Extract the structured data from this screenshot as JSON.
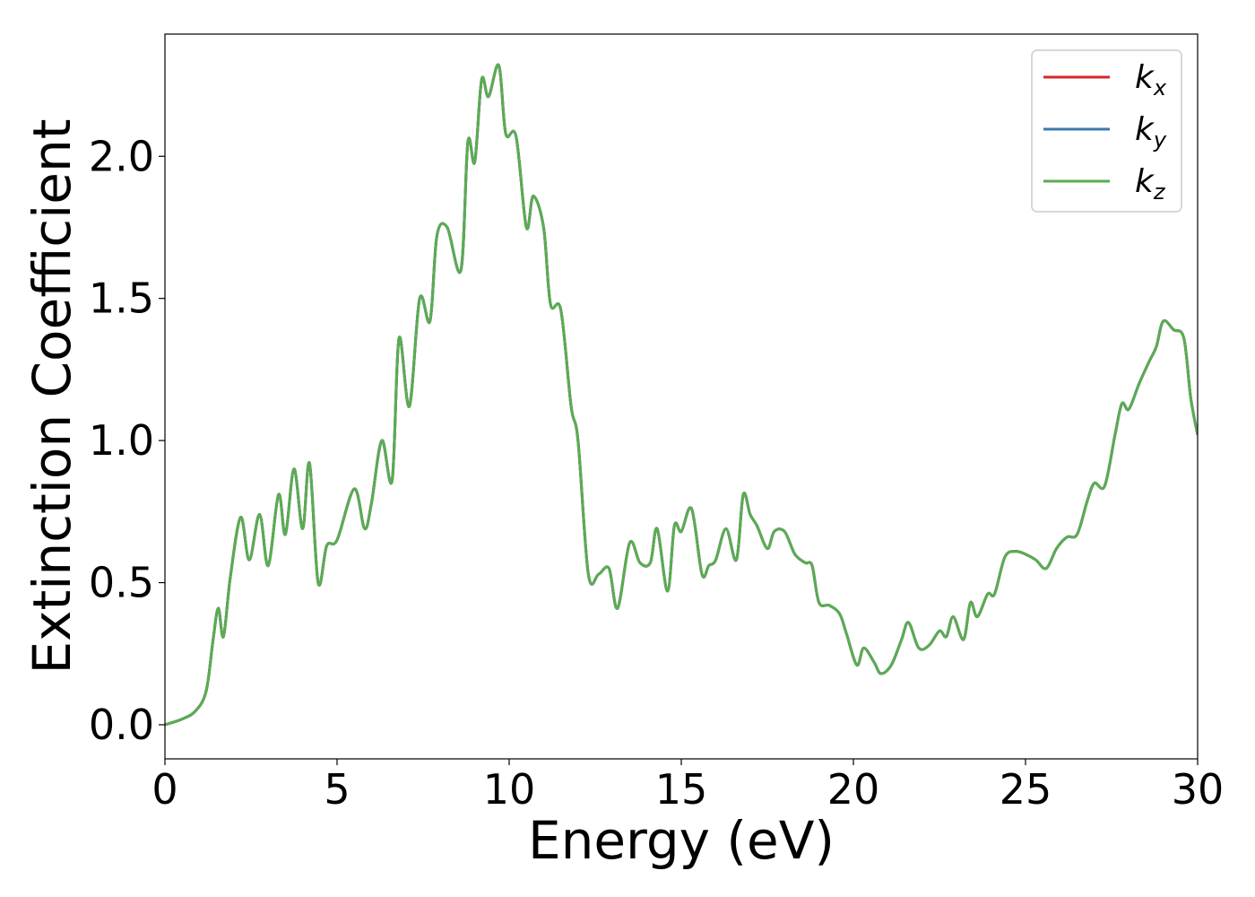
{
  "chart_data": {
    "type": "line",
    "title": "",
    "xlabel": "Energy (eV)",
    "ylabel": "Extinction Coefficient",
    "xlim": [
      0,
      30
    ],
    "ylim": [
      -0.12,
      2.43
    ],
    "xticks": [
      0,
      5,
      10,
      15,
      20,
      25,
      30
    ],
    "xtick_labels": [
      "0",
      "5",
      "10",
      "15",
      "20",
      "25",
      "30"
    ],
    "yticks": [
      0.0,
      0.5,
      1.0,
      1.5,
      2.0
    ],
    "ytick_labels": [
      "0.0",
      "0.5",
      "1.0",
      "1.5",
      "2.0"
    ],
    "grid": false,
    "legend_position": "top-right",
    "x": [
      0,
      0.5,
      0.9,
      1.2,
      1.4,
      1.55,
      1.7,
      1.9,
      2.2,
      2.45,
      2.75,
      3.0,
      3.3,
      3.5,
      3.75,
      4.0,
      4.2,
      4.45,
      4.7,
      5.0,
      5.5,
      5.8,
      6.0,
      6.3,
      6.6,
      6.8,
      7.1,
      7.4,
      7.7,
      7.9,
      8.2,
      8.6,
      8.8,
      9.0,
      9.2,
      9.4,
      9.7,
      9.9,
      10.2,
      10.5,
      10.7,
      11.0,
      11.2,
      11.5,
      11.8,
      12.0,
      12.3,
      12.6,
      12.9,
      13.15,
      13.5,
      13.8,
      14.1,
      14.3,
      14.6,
      14.8,
      15.0,
      15.3,
      15.6,
      15.8,
      16.0,
      16.3,
      16.6,
      16.8,
      17.0,
      17.2,
      17.5,
      17.7,
      18.0,
      18.3,
      18.6,
      18.8,
      19.0,
      19.3,
      19.6,
      19.8,
      20.1,
      20.3,
      20.6,
      20.8,
      21.1,
      21.4,
      21.6,
      21.9,
      22.2,
      22.5,
      22.7,
      22.9,
      23.2,
      23.4,
      23.6,
      23.9,
      24.1,
      24.4,
      24.7,
      25.0,
      25.3,
      25.6,
      25.9,
      26.2,
      26.5,
      26.8,
      27.0,
      27.3,
      27.6,
      27.8,
      28.0,
      28.3,
      28.6,
      28.8,
      29.0,
      29.3,
      29.6,
      29.8,
      30.0
    ],
    "series": [
      {
        "name": "kx",
        "color": "#d62728",
        "values": [
          0.0,
          0.02,
          0.05,
          0.12,
          0.3,
          0.41,
          0.31,
          0.52,
          0.73,
          0.58,
          0.74,
          0.56,
          0.81,
          0.67,
          0.9,
          0.69,
          0.92,
          0.5,
          0.63,
          0.65,
          0.83,
          0.69,
          0.78,
          1.0,
          0.86,
          1.36,
          1.12,
          1.5,
          1.42,
          1.72,
          1.75,
          1.6,
          2.05,
          1.98,
          2.27,
          2.21,
          2.32,
          2.08,
          2.07,
          1.75,
          1.86,
          1.75,
          1.48,
          1.46,
          1.12,
          1.0,
          0.53,
          0.53,
          0.55,
          0.41,
          0.64,
          0.57,
          0.57,
          0.69,
          0.47,
          0.7,
          0.68,
          0.76,
          0.53,
          0.56,
          0.58,
          0.69,
          0.58,
          0.81,
          0.74,
          0.7,
          0.62,
          0.68,
          0.68,
          0.6,
          0.57,
          0.56,
          0.43,
          0.42,
          0.39,
          0.32,
          0.21,
          0.27,
          0.22,
          0.18,
          0.21,
          0.3,
          0.36,
          0.27,
          0.28,
          0.33,
          0.31,
          0.38,
          0.3,
          0.43,
          0.38,
          0.46,
          0.46,
          0.59,
          0.61,
          0.6,
          0.58,
          0.55,
          0.62,
          0.66,
          0.67,
          0.79,
          0.85,
          0.84,
          1.02,
          1.13,
          1.11,
          1.2,
          1.28,
          1.33,
          1.42,
          1.39,
          1.36,
          1.15,
          1.02
        ]
      },
      {
        "name": "ky",
        "color": "#3a78b0",
        "values": [
          0.0,
          0.02,
          0.05,
          0.12,
          0.3,
          0.41,
          0.31,
          0.52,
          0.73,
          0.58,
          0.74,
          0.56,
          0.81,
          0.67,
          0.9,
          0.69,
          0.92,
          0.5,
          0.63,
          0.65,
          0.83,
          0.69,
          0.78,
          1.0,
          0.86,
          1.36,
          1.12,
          1.5,
          1.42,
          1.72,
          1.75,
          1.6,
          2.05,
          1.98,
          2.27,
          2.21,
          2.32,
          2.08,
          2.07,
          1.75,
          1.86,
          1.75,
          1.48,
          1.46,
          1.12,
          1.0,
          0.53,
          0.53,
          0.55,
          0.41,
          0.64,
          0.57,
          0.57,
          0.69,
          0.47,
          0.7,
          0.68,
          0.76,
          0.53,
          0.56,
          0.58,
          0.69,
          0.58,
          0.81,
          0.74,
          0.7,
          0.62,
          0.68,
          0.68,
          0.6,
          0.57,
          0.56,
          0.43,
          0.42,
          0.39,
          0.32,
          0.21,
          0.27,
          0.22,
          0.18,
          0.21,
          0.3,
          0.36,
          0.27,
          0.28,
          0.33,
          0.31,
          0.38,
          0.3,
          0.43,
          0.38,
          0.46,
          0.46,
          0.59,
          0.61,
          0.6,
          0.58,
          0.55,
          0.62,
          0.66,
          0.67,
          0.79,
          0.85,
          0.84,
          1.02,
          1.13,
          1.11,
          1.2,
          1.28,
          1.33,
          1.42,
          1.39,
          1.36,
          1.15,
          1.02
        ]
      },
      {
        "name": "kz",
        "color": "#5aac52",
        "values": [
          0.0,
          0.02,
          0.05,
          0.12,
          0.3,
          0.41,
          0.31,
          0.52,
          0.73,
          0.58,
          0.74,
          0.56,
          0.81,
          0.67,
          0.9,
          0.69,
          0.92,
          0.5,
          0.63,
          0.65,
          0.83,
          0.69,
          0.78,
          1.0,
          0.86,
          1.36,
          1.12,
          1.5,
          1.42,
          1.72,
          1.75,
          1.6,
          2.05,
          1.98,
          2.27,
          2.21,
          2.32,
          2.08,
          2.07,
          1.75,
          1.86,
          1.75,
          1.48,
          1.46,
          1.12,
          1.0,
          0.53,
          0.53,
          0.55,
          0.41,
          0.64,
          0.57,
          0.57,
          0.69,
          0.47,
          0.7,
          0.68,
          0.76,
          0.53,
          0.56,
          0.58,
          0.69,
          0.58,
          0.81,
          0.74,
          0.7,
          0.62,
          0.68,
          0.68,
          0.6,
          0.57,
          0.56,
          0.43,
          0.42,
          0.39,
          0.32,
          0.21,
          0.27,
          0.22,
          0.18,
          0.21,
          0.3,
          0.36,
          0.27,
          0.28,
          0.33,
          0.31,
          0.38,
          0.3,
          0.43,
          0.38,
          0.46,
          0.46,
          0.59,
          0.61,
          0.6,
          0.58,
          0.55,
          0.62,
          0.66,
          0.67,
          0.79,
          0.85,
          0.84,
          1.02,
          1.13,
          1.11,
          1.2,
          1.28,
          1.33,
          1.42,
          1.39,
          1.36,
          1.15,
          1.02
        ]
      }
    ],
    "legend": [
      {
        "base": "k",
        "sub": "x",
        "color": "#d62728"
      },
      {
        "base": "k",
        "sub": "y",
        "color": "#3a78b0"
      },
      {
        "base": "k",
        "sub": "z",
        "color": "#5aac52"
      }
    ]
  }
}
